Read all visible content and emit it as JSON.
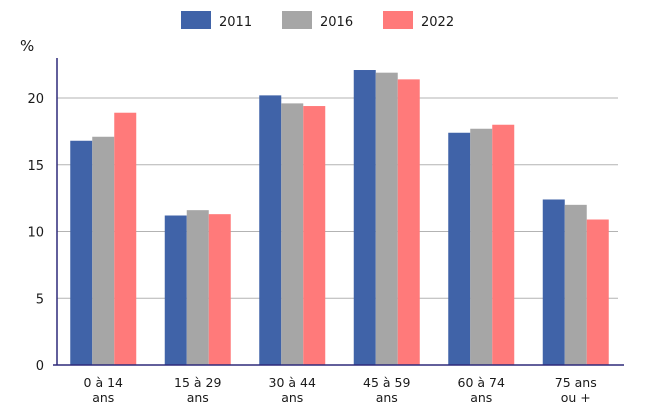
{
  "chart_data": {
    "type": "bar",
    "ylabel": "%",
    "xlabel": "",
    "ylim": [
      0,
      23
    ],
    "yticks": [
      0,
      5,
      10,
      15,
      20
    ],
    "grid": true,
    "legend_position": "top-center",
    "categories": [
      [
        "0 à 14",
        "ans"
      ],
      [
        "15 à 29",
        "ans"
      ],
      [
        "30 à 44",
        "ans"
      ],
      [
        "45 à 59",
        "ans"
      ],
      [
        "60 à 74",
        "ans"
      ],
      [
        "75 ans",
        "ou +"
      ]
    ],
    "series": [
      {
        "name": "2011",
        "color": "#4063a8",
        "values": [
          16.8,
          11.2,
          20.2,
          22.1,
          17.4,
          12.4
        ]
      },
      {
        "name": "2016",
        "color": "#a6a6a6",
        "values": [
          17.1,
          11.6,
          19.6,
          21.9,
          17.7,
          12.0
        ]
      },
      {
        "name": "2022",
        "color": "#ff7a7a",
        "values": [
          18.9,
          11.3,
          19.4,
          21.4,
          18.0,
          10.9
        ]
      }
    ]
  }
}
